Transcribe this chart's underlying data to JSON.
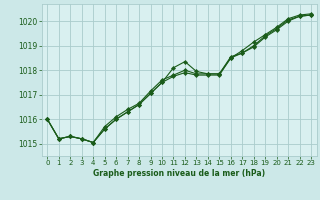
{
  "title": "Graphe pression niveau de la mer (hPa)",
  "bg_color": "#cce8e8",
  "plot_bg_color": "#d9f0f0",
  "grid_color": "#aacccc",
  "line_color": "#1a5c1a",
  "text_color": "#1a5c1a",
  "xlim": [
    -0.5,
    23.5
  ],
  "ylim": [
    1014.5,
    1020.7
  ],
  "yticks": [
    1015,
    1016,
    1017,
    1018,
    1019,
    1020
  ],
  "xticks": [
    0,
    1,
    2,
    3,
    4,
    5,
    6,
    7,
    8,
    9,
    10,
    11,
    12,
    13,
    14,
    15,
    16,
    17,
    18,
    19,
    20,
    21,
    22,
    23
  ],
  "line1": [
    1016.0,
    1015.2,
    1015.3,
    1015.2,
    1015.05,
    1015.6,
    1016.0,
    1016.3,
    1016.6,
    1017.05,
    1017.5,
    1018.1,
    1018.35,
    1017.95,
    1017.85,
    1017.85,
    1018.55,
    1018.7,
    1018.95,
    1019.35,
    1019.65,
    1020.0,
    1020.2,
    1020.25
  ],
  "line2": [
    1016.0,
    1015.2,
    1015.3,
    1015.2,
    1015.05,
    1015.6,
    1016.0,
    1016.3,
    1016.6,
    1017.05,
    1017.5,
    1017.75,
    1017.9,
    1017.8,
    1017.8,
    1017.8,
    1018.5,
    1018.7,
    1019.0,
    1019.4,
    1019.7,
    1020.05,
    1020.2,
    1020.25
  ],
  "line3": [
    1016.0,
    1015.2,
    1015.3,
    1015.2,
    1015.05,
    1015.7,
    1016.1,
    1016.4,
    1016.65,
    1017.15,
    1017.6,
    1017.8,
    1018.0,
    1017.85,
    1017.85,
    1017.85,
    1018.5,
    1018.8,
    1019.15,
    1019.45,
    1019.75,
    1020.1,
    1020.25,
    1020.3
  ]
}
